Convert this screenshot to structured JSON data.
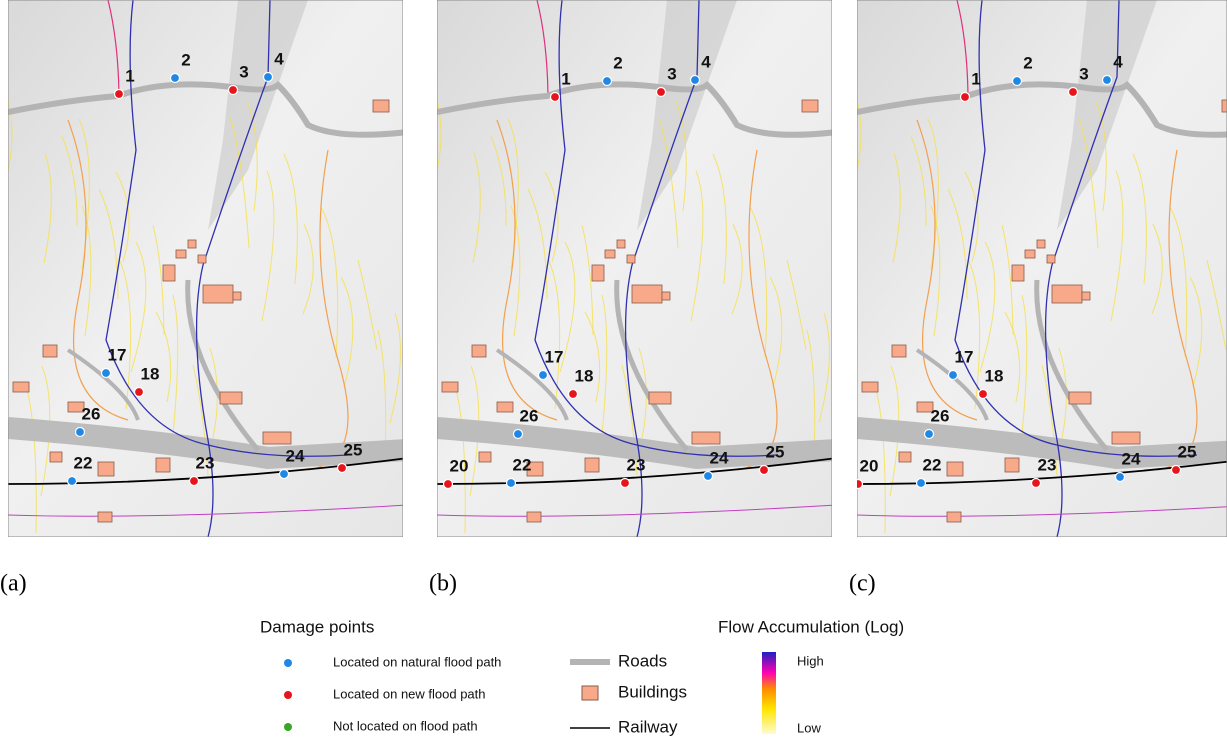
{
  "panels": [
    {
      "label": "(a)",
      "points": [
        {
          "label": "1",
          "color": "#e8141c"
        },
        {
          "label": "2",
          "color": "#1f87e5"
        },
        {
          "label": "3",
          "color": "#e8141c"
        },
        {
          "label": "4",
          "color": "#1f87e5"
        },
        {
          "label": "17",
          "color": "#1f87e5"
        },
        {
          "label": "18",
          "color": "#e8141c"
        },
        {
          "label": "26",
          "color": "#1f87e5"
        },
        {
          "label": "22",
          "color": "#1f87e5"
        },
        {
          "label": "23",
          "color": "#e8141c"
        },
        {
          "label": "24",
          "color": "#1f87e5"
        },
        {
          "label": "25",
          "color": "#e8141c"
        }
      ]
    },
    {
      "label": "(b)",
      "points": [
        {
          "label": "1",
          "color": "#e8141c"
        },
        {
          "label": "2",
          "color": "#1f87e5"
        },
        {
          "label": "3",
          "color": "#e8141c"
        },
        {
          "label": "4",
          "color": "#1f87e5"
        },
        {
          "label": "17",
          "color": "#1f87e5"
        },
        {
          "label": "18",
          "color": "#e8141c"
        },
        {
          "label": "26",
          "color": "#1f87e5"
        },
        {
          "label": "20",
          "color": "#e8141c"
        },
        {
          "label": "22",
          "color": "#1f87e5"
        },
        {
          "label": "23",
          "color": "#e8141c"
        },
        {
          "label": "24",
          "color": "#1f87e5"
        },
        {
          "label": "25",
          "color": "#e8141c"
        }
      ]
    },
    {
      "label": "(c)",
      "points": [
        {
          "label": "1",
          "color": "#e8141c"
        },
        {
          "label": "2",
          "color": "#1f87e5"
        },
        {
          "label": "3",
          "color": "#e8141c"
        },
        {
          "label": "4",
          "color": "#1f87e5"
        },
        {
          "label": "17",
          "color": "#1f87e5"
        },
        {
          "label": "18",
          "color": "#e8141c"
        },
        {
          "label": "26",
          "color": "#1f87e5"
        },
        {
          "label": "20",
          "color": "#e8141c"
        },
        {
          "label": "22",
          "color": "#1f87e5"
        },
        {
          "label": "23",
          "color": "#e8141c"
        },
        {
          "label": "24",
          "color": "#1f87e5"
        },
        {
          "label": "25",
          "color": "#e8141c"
        }
      ]
    }
  ],
  "legend": {
    "damage_title": "Damage points",
    "damage_items": [
      {
        "label": "Located on natural flood path",
        "color": "#1f87e5"
      },
      {
        "label": "Located on new flood path",
        "color": "#e8141c"
      },
      {
        "label": "Not located on flood path",
        "color": "#3aa52a"
      }
    ],
    "roads": "Roads",
    "buildings": "Buildings",
    "railway": "Railway",
    "flow_title": "Flow Accumulation (Log)",
    "high": "High",
    "low": "Low"
  }
}
